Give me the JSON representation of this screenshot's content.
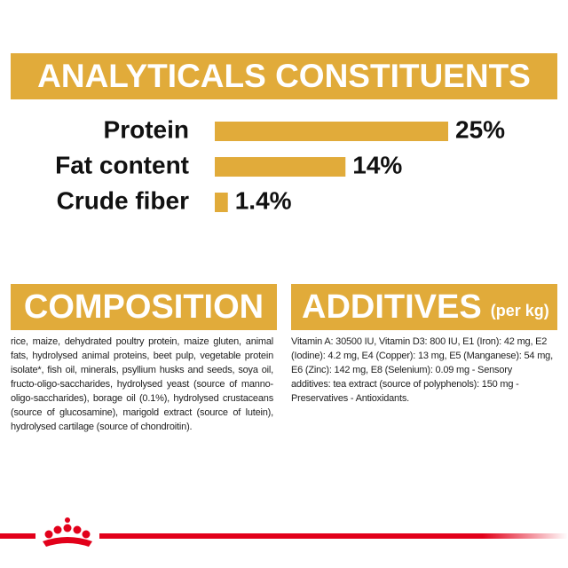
{
  "chart_data": {
    "type": "bar",
    "title": "ANALYTICALS CONSTITUENTS",
    "categories": [
      "Protein",
      "Fat content",
      "Crude fiber"
    ],
    "values": [
      25,
      14,
      1.4
    ],
    "value_labels": [
      "25%",
      "14%",
      "1.4%"
    ],
    "color": "#e1ab3a"
  },
  "composition": {
    "title": "COMPOSITION",
    "text": "rice, maize, dehydrated poultry protein, maize gluten, animal fats, hydrolysed animal proteins, beet pulp, vegetable protein isolate*, fish oil, minerals, psyllium husks and seeds, soya oil, fructo-oligo-saccharides, hydrolysed yeast (source of manno-oligo-saccharides), borage oil (0.1%), hydrolysed crustaceans (source of glucosamine), marigold extract (source of lutein), hydrolysed cartilage (source of chondroitin)."
  },
  "additives": {
    "title": "ADDITIVES",
    "unit": "(per kg)",
    "text": "Vitamin A: 30500 IU, Vitamin D3: 800 IU, E1 (Iron): 42 mg, E2 (Iodine): 4.2 mg, E4 (Copper): 13 mg, E5 (Manganese): 54 mg, E6 (Zinc): 142 mg, E8 (Selenium): 0.09 mg - Sensory additives: tea extract (source of polyphenols): 150 mg - Preservatives - Antioxidants."
  }
}
